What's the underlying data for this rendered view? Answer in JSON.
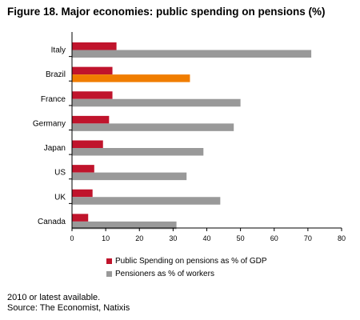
{
  "title": "Figure 18. Major economies: public spending on pensions (%)",
  "note": "2010 or latest available.",
  "source": "Source: The Economist, Natixis",
  "chart_data": {
    "type": "bar",
    "orientation": "horizontal",
    "categories": [
      "Italy",
      "Brazil",
      "France",
      "Germany",
      "Japan",
      "US",
      "UK",
      "Canada"
    ],
    "series": [
      {
        "name": "Public Spending on pensions as % of GDP",
        "color": "#c0142c",
        "values": [
          13.2,
          12,
          12,
          11,
          9.2,
          6.6,
          6.1,
          4.8
        ]
      },
      {
        "name": "Pensioners as % of workers",
        "color": "#999999",
        "values": [
          71,
          35,
          50,
          48,
          39,
          34,
          44,
          31
        ]
      }
    ],
    "highlight": {
      "category": "Brazil",
      "series": "Pensioners as % of workers",
      "color": "#f07d00"
    },
    "xlim": [
      0,
      80
    ],
    "xticks": [
      0,
      10,
      20,
      30,
      40,
      50,
      60,
      70,
      80
    ],
    "legend_position": "bottom",
    "grid": false
  }
}
